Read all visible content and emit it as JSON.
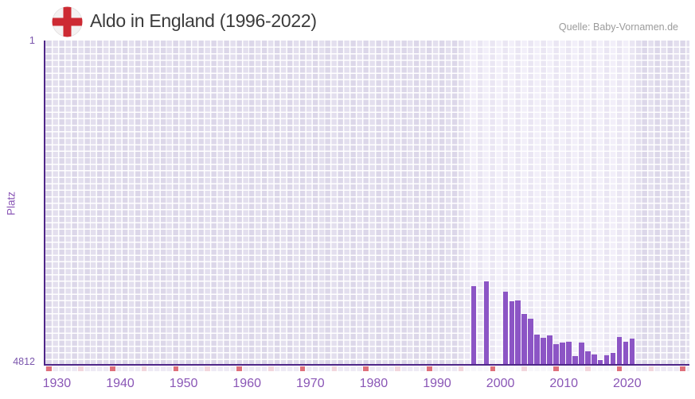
{
  "header": {
    "title": "Aldo in England (1996-2022)",
    "source": "Quelle: Baby-Vornamen.de",
    "flag_icon": "england-flag"
  },
  "y_axis": {
    "label": "Platz",
    "top_tick": "1",
    "bottom_tick": "4812"
  },
  "x_axis": {
    "ticks": [
      "1930",
      "1940",
      "1950",
      "1960",
      "1970",
      "1980",
      "1990",
      "2000",
      "2010",
      "2020"
    ]
  },
  "chart_data": {
    "type": "bar",
    "title": "Aldo in England (1996-2022)",
    "xlabel": "",
    "ylabel": "Platz",
    "x_domain": [
      1930,
      2031
    ],
    "y_domain": [
      1,
      4812
    ],
    "y_inverted": true,
    "grid": "checker",
    "legend": "none",
    "data_coverage_years": [
      1996,
      2022
    ],
    "timeline_markers": {
      "start": 1930,
      "end": 2030,
      "step": 5
    },
    "series": [
      {
        "name": "Aldo",
        "points": [
          {
            "year": 1997,
            "rank": 3655
          },
          {
            "year": 1999,
            "rank": 3585
          },
          {
            "year": 2002,
            "rank": 3730
          },
          {
            "year": 2003,
            "rank": 3875
          },
          {
            "year": 2004,
            "rank": 3870
          },
          {
            "year": 2005,
            "rank": 4070
          },
          {
            "year": 2006,
            "rank": 4135
          },
          {
            "year": 2007,
            "rank": 4370
          },
          {
            "year": 2008,
            "rank": 4425
          },
          {
            "year": 2009,
            "rank": 4390
          },
          {
            "year": 2010,
            "rank": 4510
          },
          {
            "year": 2011,
            "rank": 4490
          },
          {
            "year": 2012,
            "rank": 4480
          },
          {
            "year": 2013,
            "rank": 4695
          },
          {
            "year": 2014,
            "rank": 4490
          },
          {
            "year": 2015,
            "rank": 4620
          },
          {
            "year": 2016,
            "rank": 4665
          },
          {
            "year": 2017,
            "rank": 4755
          },
          {
            "year": 2018,
            "rank": 4685
          },
          {
            "year": 2019,
            "rank": 4650
          },
          {
            "year": 2020,
            "rank": 4405
          },
          {
            "year": 2021,
            "rank": 4485
          },
          {
            "year": 2022,
            "rank": 4430
          }
        ]
      }
    ]
  },
  "colors": {
    "bar": "#8c55c5",
    "axis": "#4e2688",
    "cell_dark": "#e3dfee",
    "cell_light_band": "#f2eff9",
    "marker_decade": "#df707b",
    "marker_half_decade": "#f2d6dd",
    "tick_text": "#8a56b6",
    "y_tick_text": "#7b56ad",
    "title_text": "#3c3c3c",
    "source_text": "#9b9b9b",
    "flag_red": "#cd2a33",
    "flag_circle": "#f4f2f2"
  }
}
